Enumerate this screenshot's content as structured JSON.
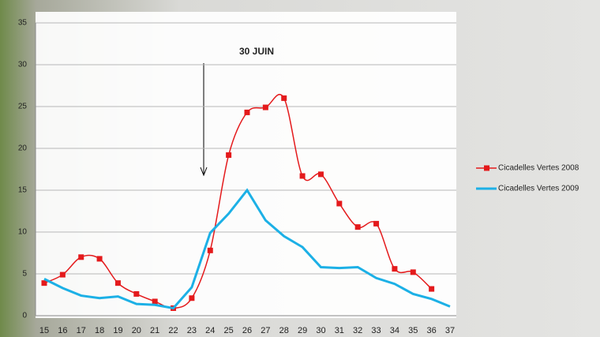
{
  "chart_data": {
    "type": "line",
    "annotation": "30 JUIN",
    "categories": [
      "15",
      "16",
      "17",
      "18",
      "19",
      "20",
      "21",
      "22",
      "23",
      "24",
      "25",
      "26",
      "27",
      "28",
      "29",
      "30",
      "31",
      "32",
      "33",
      "34",
      "35",
      "36",
      "37"
    ],
    "series": [
      {
        "name": "Cicadelles Vertes 2008",
        "color": "#e41a1c",
        "smooth": true,
        "marker": "square",
        "values": [
          3.9,
          4.9,
          7.0,
          6.8,
          3.9,
          2.6,
          1.7,
          0.9,
          2.1,
          7.8,
          19.2,
          24.3,
          24.9,
          26.0,
          16.7,
          16.9,
          13.4,
          10.6,
          11.0,
          5.6,
          5.2,
          3.2,
          null
        ]
      },
      {
        "name": "Cicadelles Vertes 2009",
        "color": "#1cb0e6",
        "smooth": false,
        "marker": "none",
        "values": [
          4.4,
          3.3,
          2.4,
          2.1,
          2.3,
          1.4,
          1.3,
          0.9,
          3.4,
          9.9,
          12.2,
          15.0,
          11.4,
          9.5,
          8.2,
          5.8,
          5.7,
          5.8,
          4.5,
          3.8,
          2.6,
          2.0,
          1.1
        ]
      }
    ],
    "ylim": [
      0,
      35
    ],
    "yticks": [
      0,
      5,
      10,
      15,
      20,
      25,
      30,
      35
    ],
    "grid": true,
    "legend": "right"
  }
}
